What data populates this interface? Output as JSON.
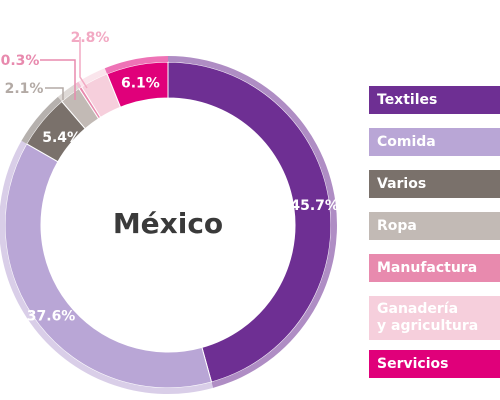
{
  "chart_data": {
    "type": "pie",
    "center_label": "México",
    "legend_position": "right",
    "slices": [
      {
        "label": "Textiles",
        "value": 45.7,
        "value_label": "45.7%",
        "color": "#6e2f93"
      },
      {
        "label": "Comida",
        "value": 37.6,
        "value_label": "37.6%",
        "color": "#b9a6d6"
      },
      {
        "label": "Varios",
        "value": 5.4,
        "value_label": "5.4%",
        "color": "#7a716b"
      },
      {
        "label": "Ropa",
        "value": 2.1,
        "value_label": "2.1%",
        "color": "#c2bab5"
      },
      {
        "label": "Manufactura",
        "value": 0.3,
        "value_label": "0.3%",
        "color": "#e88aae"
      },
      {
        "label": "Ganadería y agricultura",
        "value": 2.8,
        "value_label": "2.8%",
        "color": "#f6cfdc"
      },
      {
        "label": "Servicios",
        "value": 6.1,
        "value_label": "6.1%",
        "color": "#e0007a"
      }
    ]
  },
  "legend": {
    "items": [
      {
        "label": "Textiles",
        "color": "#6e2f93"
      },
      {
        "label": "Comida",
        "color": "#b9a6d6"
      },
      {
        "label": "Varios",
        "color": "#7a716b"
      },
      {
        "label": "Ropa",
        "color": "#c2bab5"
      },
      {
        "label": "Manufactura",
        "color": "#e88aae"
      },
      {
        "label": "Ganadería\ny agricultura",
        "color": "#f6cfdc"
      },
      {
        "label": "Servicios",
        "color": "#e0007a"
      }
    ]
  }
}
